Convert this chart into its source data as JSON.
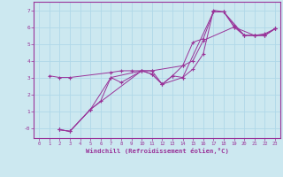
{
  "xlabel": "Windchill (Refroidissement éolien,°C)",
  "xlim": [
    -0.5,
    23.5
  ],
  "ylim": [
    -0.6,
    7.5
  ],
  "yticks": [
    0,
    1,
    2,
    3,
    4,
    5,
    6,
    7
  ],
  "ytick_labels": [
    "-0",
    "1",
    "2",
    "3",
    "4",
    "5",
    "6",
    "7"
  ],
  "xticks": [
    0,
    1,
    2,
    3,
    4,
    5,
    6,
    7,
    8,
    9,
    10,
    11,
    12,
    13,
    14,
    15,
    16,
    17,
    18,
    19,
    20,
    21,
    22,
    23
  ],
  "bg_color": "#cce8f0",
  "line_color": "#993399",
  "grid_color": "#b0d8e8",
  "lines": [
    {
      "x": [
        1,
        2,
        3,
        7,
        8,
        9,
        10,
        11,
        12,
        13,
        14,
        17,
        18,
        19,
        20,
        21,
        22,
        23
      ],
      "y": [
        3.1,
        3.0,
        3.0,
        3.3,
        3.4,
        3.4,
        3.4,
        3.4,
        2.6,
        3.1,
        3.0,
        6.9,
        6.9,
        6.1,
        5.5,
        5.5,
        5.5,
        5.9
      ]
    },
    {
      "x": [
        2,
        3,
        5,
        6,
        7,
        8,
        10,
        11,
        12,
        13,
        14,
        15,
        16,
        17,
        18,
        20,
        21,
        22,
        23
      ],
      "y": [
        -0.1,
        -0.2,
        1.1,
        1.6,
        3.0,
        2.7,
        3.4,
        3.2,
        2.6,
        3.1,
        3.7,
        5.1,
        5.3,
        6.9,
        6.9,
        5.5,
        5.5,
        5.5,
        5.9
      ]
    },
    {
      "x": [
        2,
        3,
        5,
        10,
        11,
        14,
        15,
        16,
        19,
        20,
        21,
        22,
        23
      ],
      "y": [
        -0.1,
        -0.2,
        1.1,
        3.4,
        3.4,
        3.7,
        4.0,
        5.2,
        6.0,
        5.5,
        5.5,
        5.6,
        5.9
      ]
    },
    {
      "x": [
        2,
        3,
        5,
        7,
        10,
        11,
        12,
        14,
        15,
        16,
        17,
        18,
        19,
        21,
        22,
        23
      ],
      "y": [
        -0.1,
        -0.2,
        1.1,
        3.0,
        3.4,
        3.2,
        2.6,
        3.0,
        3.5,
        4.4,
        7.0,
        6.9,
        6.0,
        5.5,
        5.5,
        5.9
      ]
    }
  ]
}
